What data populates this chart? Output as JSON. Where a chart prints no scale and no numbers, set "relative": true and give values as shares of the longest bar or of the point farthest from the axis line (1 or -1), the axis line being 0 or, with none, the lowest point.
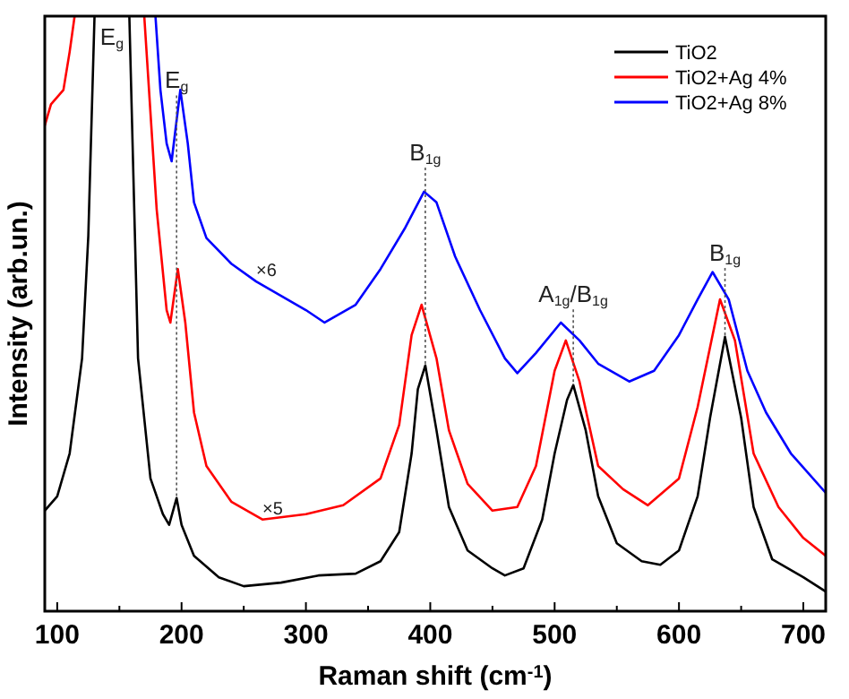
{
  "chart_data": {
    "type": "line",
    "relative": true,
    "xlabel": "Raman shift (cm$^{-1}$)",
    "ylabel": "Intensity (arb.un.)",
    "xlim": [
      90,
      718
    ],
    "xticks": [
      100,
      {
        "value": 150,
        "label": null
      },
      200,
      {
        "value": 250,
        "label": null
      },
      300,
      {
        "value": 350,
        "label": null
      },
      400,
      {
        "value": 450,
        "label": null
      },
      500,
      {
        "value": 550,
        "label": null
      },
      600,
      {
        "value": 650,
        "label": null
      },
      700
    ],
    "legend": "top right",
    "grid": false,
    "marker": "none",
    "line_style": "solid",
    "series": [
      {
        "name": "TiO2",
        "color": "#000000",
        "x": [
          90,
          100,
          110,
          120,
          125,
          130,
          140,
          150,
          158,
          165,
          175,
          185,
          190,
          196,
          200,
          210,
          230,
          250,
          280,
          310,
          340,
          360,
          375,
          385,
          390,
          396,
          405,
          415,
          430,
          450,
          460,
          475,
          490,
          500,
          510,
          515,
          525,
          535,
          550,
          570,
          585,
          600,
          615,
          625,
          637,
          650,
          660,
          675,
          700,
          718
        ],
        "values": [
          0.169,
          0.193,
          0.265,
          0.425,
          0.63,
          1,
          null,
          null,
          1,
          0.425,
          0.223,
          0.163,
          0.145,
          0.19,
          0.145,
          0.093,
          0.057,
          0.042,
          0.048,
          0.06,
          0.063,
          0.084,
          0.133,
          0.265,
          0.373,
          0.413,
          0.304,
          0.175,
          0.102,
          0.072,
          0.06,
          0.072,
          0.154,
          0.265,
          0.355,
          0.38,
          0.304,
          0.193,
          0.114,
          0.084,
          0.078,
          0.102,
          0.193,
          0.325,
          0.461,
          0.325,
          0.175,
          0.087,
          0.057,
          0.033
        ]
      },
      {
        "name": "TiO2+Ag 4%",
        "color": "#ff0000",
        "x": [
          90,
          95,
          105,
          110,
          114,
          130,
          150,
          170,
          180,
          188,
          191,
          197,
          203,
          210,
          220,
          240,
          265,
          300,
          330,
          360,
          375,
          385,
          393,
          405,
          415,
          430,
          450,
          470,
          485,
          500,
          509,
          520,
          535,
          555,
          575,
          600,
          615,
          633,
          645,
          660,
          680,
          700,
          718
        ],
        "values": [
          0.816,
          0.852,
          0.876,
          0.94,
          1,
          null,
          null,
          1,
          0.675,
          0.506,
          0.485,
          0.575,
          0.485,
          0.334,
          0.244,
          0.184,
          0.154,
          0.163,
          0.178,
          0.223,
          0.313,
          0.464,
          0.515,
          0.425,
          0.304,
          0.214,
          0.169,
          0.175,
          0.244,
          0.404,
          0.455,
          0.386,
          0.244,
          0.205,
          0.178,
          0.223,
          0.343,
          0.524,
          0.455,
          0.265,
          0.175,
          0.123,
          0.093
        ]
      },
      {
        "name": "TiO2+Ag 8%",
        "color": "#0000ff",
        "x": [
          179,
          183,
          188,
          192,
          199,
          205,
          210,
          220,
          240,
          260,
          280,
          300,
          315,
          340,
          360,
          380,
          395,
          405,
          420,
          440,
          460,
          470,
          485,
          505,
          520,
          535,
          560,
          580,
          600,
          615,
          627,
          640,
          655,
          670,
          690,
          718
        ],
        "values": [
          1,
          0.876,
          0.786,
          0.756,
          0.876,
          0.786,
          0.687,
          0.627,
          0.584,
          0.554,
          0.53,
          0.506,
          0.485,
          0.515,
          0.575,
          0.645,
          0.705,
          0.687,
          0.596,
          0.506,
          0.425,
          0.4,
          0.434,
          0.485,
          0.455,
          0.416,
          0.386,
          0.404,
          0.464,
          0.524,
          0.57,
          0.524,
          0.404,
          0.334,
          0.265,
          0.199
        ]
      }
    ],
    "annotations": [
      "E$_{g}$",
      {
        "text": "E$_{g}$",
        "x": 196,
        "y": 0.19
      },
      {
        "text": "B$_{1g}$",
        "x": 396,
        "y": 0.413
      },
      {
        "text": "A$_{1g}$/B$_{1g}$",
        "x": 515,
        "y": 0.38
      },
      {
        "text": "B$_{1g}$",
        "x": 637,
        "y": 0.461
      },
      {
        "text": "×6",
        "x": 260,
        "y": 0.554
      },
      {
        "text": "×5",
        "x": 265,
        "y": 0.154
      }
    ]
  }
}
